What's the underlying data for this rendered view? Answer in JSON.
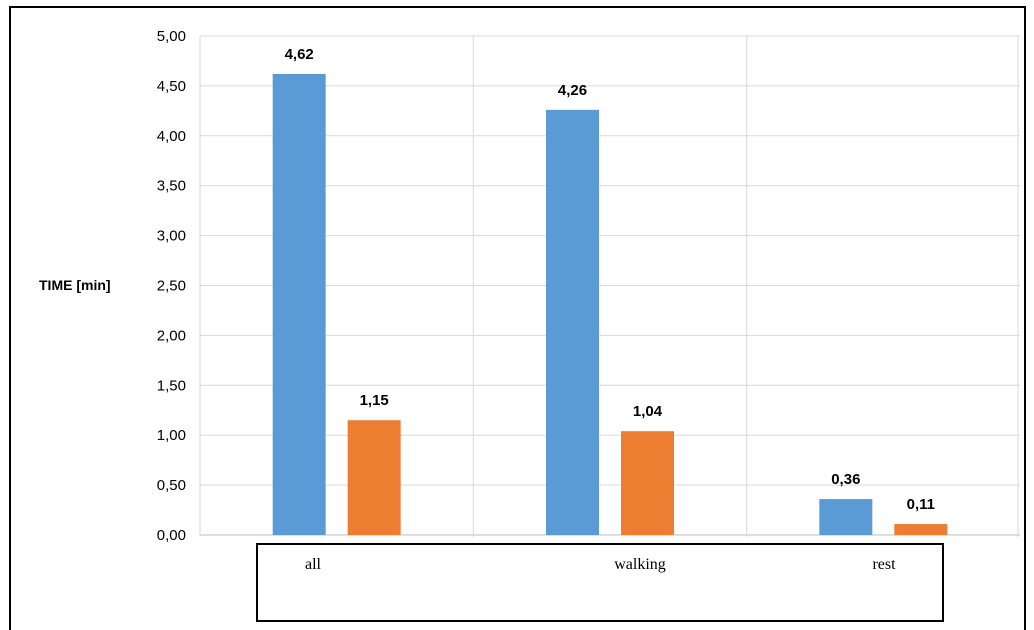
{
  "chart_data": {
    "type": "bar",
    "ylabel": "TIME [min]",
    "ylim": [
      0,
      5
    ],
    "yticks": [
      "0,00",
      "0,50",
      "1,00",
      "1,50",
      "2,00",
      "2,50",
      "3,00",
      "3,50",
      "4,00",
      "4,50",
      "5,00"
    ],
    "categories": [
      "all",
      "walking",
      "rest"
    ],
    "series": [
      {
        "values": [
          4.62,
          4.26,
          0.36
        ],
        "labels": [
          "4,62",
          "4,26",
          "0,36"
        ],
        "color": "#5B9BD5"
      },
      {
        "values": [
          1.15,
          1.04,
          0.11
        ],
        "labels": [
          "1,15",
          "1,04",
          "0,11"
        ],
        "color": "#ED7D31"
      }
    ],
    "grid": true,
    "legend": "none"
  }
}
